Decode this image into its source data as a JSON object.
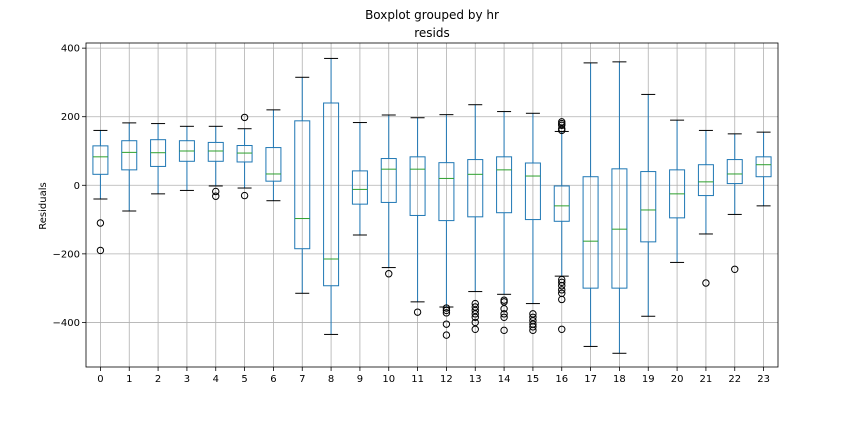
{
  "chart_data": {
    "type": "boxplot",
    "suptitle": "Boxplot grouped by hr",
    "title": "resids",
    "xlabel": "",
    "ylabel": "Residuals",
    "ylim": [
      -530,
      415
    ],
    "yticks": [
      -400,
      -200,
      0,
      200,
      400
    ],
    "grid": true,
    "colors": {
      "box": "#1f77b4",
      "median": "#2ca02c",
      "caps": "#000000",
      "grid": "#b0b0b0"
    },
    "categories": [
      "0",
      "1",
      "2",
      "3",
      "4",
      "5",
      "6",
      "7",
      "8",
      "9",
      "10",
      "11",
      "12",
      "13",
      "14",
      "15",
      "16",
      "17",
      "18",
      "19",
      "20",
      "21",
      "22",
      "23"
    ],
    "boxes": [
      {
        "label": "0",
        "whislo": -40,
        "q1": 32,
        "med": 83,
        "q3": 115,
        "whishi": 160,
        "fliers": [
          -110,
          -190
        ]
      },
      {
        "label": "1",
        "whislo": -75,
        "q1": 45,
        "med": 96,
        "q3": 130,
        "whishi": 182,
        "fliers": []
      },
      {
        "label": "2",
        "whislo": -25,
        "q1": 55,
        "med": 95,
        "q3": 133,
        "whishi": 180,
        "fliers": []
      },
      {
        "label": "3",
        "whislo": -15,
        "q1": 70,
        "med": 100,
        "q3": 130,
        "whishi": 172,
        "fliers": []
      },
      {
        "label": "4",
        "whislo": -2,
        "q1": 70,
        "med": 100,
        "q3": 125,
        "whishi": 172,
        "fliers": [
          -18,
          -32
        ]
      },
      {
        "label": "5",
        "whislo": -8,
        "q1": 68,
        "med": 94,
        "q3": 116,
        "whishi": 165,
        "fliers": [
          198,
          -30
        ]
      },
      {
        "label": "6",
        "whislo": -45,
        "q1": 12,
        "med": 33,
        "q3": 110,
        "whishi": 220,
        "fliers": []
      },
      {
        "label": "7",
        "whislo": -315,
        "q1": -185,
        "med": -97,
        "q3": 188,
        "whishi": 315,
        "fliers": []
      },
      {
        "label": "8",
        "whislo": -435,
        "q1": -293,
        "med": -215,
        "q3": 240,
        "whishi": 370,
        "fliers": []
      },
      {
        "label": "9",
        "whislo": -145,
        "q1": -55,
        "med": -12,
        "q3": 42,
        "whishi": 183,
        "fliers": []
      },
      {
        "label": "10",
        "whislo": -240,
        "q1": -50,
        "med": 47,
        "q3": 78,
        "whishi": 205,
        "fliers": [
          -258
        ]
      },
      {
        "label": "11",
        "whislo": -340,
        "q1": -88,
        "med": 47,
        "q3": 83,
        "whishi": 197,
        "fliers": [
          -370
        ]
      },
      {
        "label": "12",
        "whislo": -355,
        "q1": -103,
        "med": 20,
        "q3": 66,
        "whishi": 206,
        "fliers": [
          -358,
          -365,
          -372,
          -405,
          -437
        ]
      },
      {
        "label": "13",
        "whislo": -310,
        "q1": -92,
        "med": 32,
        "q3": 75,
        "whishi": 235,
        "fliers": [
          -345,
          -355,
          -365,
          -375,
          -385,
          -400,
          -420
        ]
      },
      {
        "label": "14",
        "whislo": -318,
        "q1": -80,
        "med": 45,
        "q3": 83,
        "whishi": 215,
        "fliers": [
          -335,
          -340,
          -360,
          -375,
          -385,
          -423
        ]
      },
      {
        "label": "15",
        "whislo": -345,
        "q1": -100,
        "med": 27,
        "q3": 65,
        "whishi": 210,
        "fliers": [
          -375,
          -385,
          -395,
          -405,
          -413,
          -423
        ]
      },
      {
        "label": "16",
        "whislo": -265,
        "q1": -105,
        "med": -60,
        "q3": -2,
        "whishi": 157,
        "fliers": [
          160,
          165,
          175,
          180,
          185,
          -275,
          -283,
          -293,
          -305,
          -315,
          -333,
          -420
        ]
      },
      {
        "label": "17",
        "whislo": -470,
        "q1": -300,
        "med": -163,
        "q3": 25,
        "whishi": 357,
        "fliers": []
      },
      {
        "label": "18",
        "whislo": -490,
        "q1": -300,
        "med": -128,
        "q3": 48,
        "whishi": 360,
        "fliers": []
      },
      {
        "label": "19",
        "whislo": -382,
        "q1": -165,
        "med": -72,
        "q3": 40,
        "whishi": 265,
        "fliers": []
      },
      {
        "label": "20",
        "whislo": -225,
        "q1": -95,
        "med": -25,
        "q3": 45,
        "whishi": 190,
        "fliers": []
      },
      {
        "label": "21",
        "whislo": -142,
        "q1": -30,
        "med": 10,
        "q3": 60,
        "whishi": 160,
        "fliers": [
          -285
        ]
      },
      {
        "label": "22",
        "whislo": -85,
        "q1": 5,
        "med": 33,
        "q3": 75,
        "whishi": 150,
        "fliers": [
          -245
        ]
      },
      {
        "label": "23",
        "whislo": -60,
        "q1": 25,
        "med": 60,
        "q3": 83,
        "whishi": 155,
        "fliers": []
      }
    ]
  }
}
